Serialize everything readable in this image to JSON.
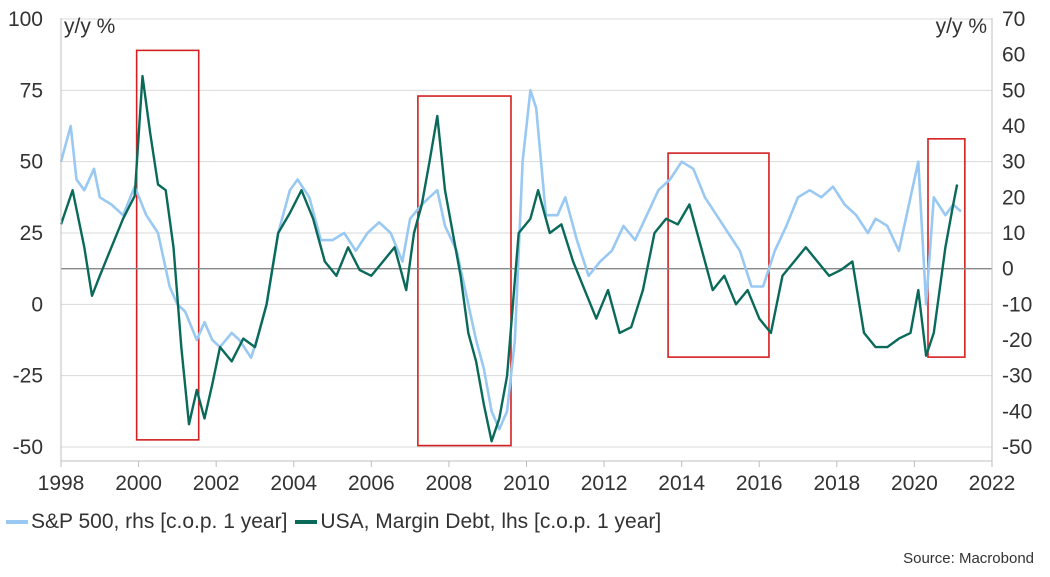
{
  "chart_data": {
    "type": "line",
    "title": "",
    "left_axis": {
      "label": "y/y %",
      "ylim": [
        -50,
        100
      ],
      "ticks": [
        100,
        75,
        50,
        25,
        0,
        -25,
        -50
      ]
    },
    "right_axis": {
      "label": "y/y %",
      "ylim": [
        -50,
        70
      ],
      "ticks": [
        70,
        60,
        50,
        40,
        30,
        20,
        10,
        0,
        -10,
        -20,
        -30,
        -40,
        -50
      ]
    },
    "x_axis": {
      "xlim": [
        1998,
        2022
      ],
      "ticks": [
        "1998",
        "2000",
        "2002",
        "2004",
        "2006",
        "2008",
        "2010",
        "2012",
        "2014",
        "2016",
        "2018",
        "2020",
        "2022"
      ]
    },
    "zero_line_rhs": 0,
    "series": [
      {
        "name": "S&P 500, rhs [c.o.p. 1 year]",
        "axis": "right",
        "color": "#99c9f2",
        "x": [
          1998.0,
          1998.25,
          1998.4,
          1998.6,
          1998.85,
          1999.0,
          1999.3,
          1999.6,
          1999.9,
          2000.2,
          2000.5,
          2000.8,
          2001.0,
          2001.2,
          2001.5,
          2001.7,
          2001.9,
          2002.1,
          2002.4,
          2002.6,
          2002.9,
          2003.1,
          2003.3,
          2003.6,
          2003.9,
          2004.1,
          2004.4,
          2004.7,
          2005.0,
          2005.3,
          2005.6,
          2005.9,
          2006.2,
          2006.5,
          2006.8,
          2007.0,
          2007.3,
          2007.5,
          2007.7,
          2007.9,
          2008.2,
          2008.5,
          2008.7,
          2008.9,
          2009.1,
          2009.3,
          2009.5,
          2009.7,
          2009.9,
          2010.1,
          2010.25,
          2010.5,
          2010.8,
          2011.0,
          2011.3,
          2011.6,
          2011.9,
          2012.2,
          2012.5,
          2012.8,
          2013.1,
          2013.4,
          2013.7,
          2014.0,
          2014.3,
          2014.6,
          2014.9,
          2015.2,
          2015.5,
          2015.8,
          2016.1,
          2016.4,
          2016.7,
          2017.0,
          2017.3,
          2017.6,
          2017.9,
          2018.2,
          2018.5,
          2018.8,
          2019.0,
          2019.3,
          2019.6,
          2019.9,
          2020.1,
          2020.3,
          2020.5,
          2020.8,
          2021.0,
          2021.2
        ],
        "values": [
          30,
          40,
          25,
          22,
          28,
          20,
          18,
          15,
          23,
          15,
          10,
          -5,
          -10,
          -12,
          -20,
          -15,
          -20,
          -22,
          -18,
          -20,
          -25,
          -18,
          -10,
          10,
          22,
          25,
          20,
          8,
          8,
          10,
          5,
          10,
          13,
          10,
          2,
          14,
          18,
          20,
          22,
          12,
          5,
          -10,
          -20,
          -28,
          -40,
          -45,
          -40,
          -20,
          30,
          50,
          45,
          15,
          15,
          20,
          8,
          -2,
          2,
          5,
          12,
          8,
          15,
          22,
          25,
          30,
          28,
          20,
          15,
          10,
          5,
          -5,
          -5,
          5,
          12,
          20,
          22,
          20,
          23,
          18,
          15,
          10,
          14,
          12,
          5,
          20,
          30,
          -10,
          20,
          15,
          18,
          16
        ]
      },
      {
        "name": "USA, Margin Debt, lhs [c.o.p. 1 year]",
        "axis": "left",
        "color": "#0a6a5a",
        "x": [
          1998.0,
          1998.3,
          1998.6,
          1998.8,
          1999.0,
          1999.3,
          1999.6,
          1999.9,
          2000.1,
          2000.3,
          2000.5,
          2000.7,
          2000.9,
          2001.1,
          2001.3,
          2001.5,
          2001.7,
          2001.9,
          2002.1,
          2002.4,
          2002.7,
          2003.0,
          2003.3,
          2003.6,
          2003.9,
          2004.2,
          2004.5,
          2004.8,
          2005.1,
          2005.4,
          2005.7,
          2006.0,
          2006.3,
          2006.6,
          2006.9,
          2007.1,
          2007.3,
          2007.5,
          2007.7,
          2007.9,
          2008.1,
          2008.3,
          2008.5,
          2008.7,
          2008.9,
          2009.1,
          2009.3,
          2009.5,
          2009.8,
          2010.1,
          2010.3,
          2010.6,
          2010.9,
          2011.2,
          2011.5,
          2011.8,
          2012.1,
          2012.4,
          2012.7,
          2013.0,
          2013.3,
          2013.6,
          2013.9,
          2014.2,
          2014.5,
          2014.8,
          2015.1,
          2015.4,
          2015.7,
          2016.0,
          2016.3,
          2016.6,
          2016.9,
          2017.2,
          2017.5,
          2017.8,
          2018.1,
          2018.4,
          2018.7,
          2019.0,
          2019.3,
          2019.6,
          2019.9,
          2020.1,
          2020.3,
          2020.5,
          2020.8,
          2021.0,
          2021.1
        ],
        "values": [
          28,
          40,
          20,
          3,
          10,
          20,
          30,
          38,
          80,
          60,
          42,
          40,
          20,
          -15,
          -42,
          -30,
          -40,
          -28,
          -15,
          -20,
          -12,
          -15,
          0,
          25,
          32,
          40,
          30,
          15,
          10,
          20,
          12,
          10,
          15,
          20,
          5,
          25,
          35,
          50,
          66,
          40,
          25,
          10,
          -10,
          -20,
          -35,
          -48,
          -40,
          -25,
          25,
          30,
          40,
          25,
          28,
          15,
          5,
          -5,
          5,
          -10,
          -8,
          5,
          25,
          30,
          28,
          35,
          20,
          5,
          10,
          0,
          5,
          -5,
          -10,
          10,
          15,
          20,
          15,
          10,
          12,
          15,
          -10,
          -15,
          -15,
          -12,
          -10,
          5,
          -18,
          -10,
          20,
          35,
          42
        ]
      }
    ],
    "annotations": [
      {
        "type": "highlight-box",
        "x_range": [
          1999.95,
          2001.55
        ],
        "y_range_lhs": [
          -47.5,
          89
        ],
        "color": "#d42020"
      },
      {
        "type": "highlight-box",
        "x_range": [
          2007.2,
          2009.6
        ],
        "y_range_lhs": [
          -49.5,
          73
        ],
        "color": "#d42020"
      },
      {
        "type": "highlight-box",
        "x_range": [
          2013.65,
          2016.25
        ],
        "y_range_lhs": [
          -18.5,
          53
        ],
        "color": "#d42020"
      },
      {
        "type": "highlight-box",
        "x_range": [
          2020.35,
          2021.3
        ],
        "y_range_lhs": [
          -18.5,
          58
        ],
        "color": "#d42020"
      }
    ],
    "legend_position": "bottom-left",
    "source": "Source: Macrobond"
  }
}
